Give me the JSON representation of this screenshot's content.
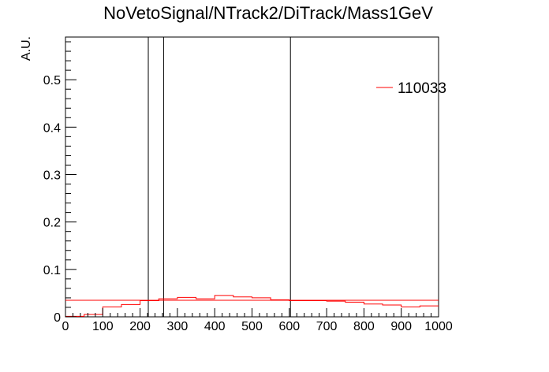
{
  "chart_data": {
    "type": "line",
    "title": "NoVetoSignal/NTrack2/DiTrack/Mass1GeV",
    "xlabel": "",
    "ylabel": "A.U.",
    "xlim": [
      0,
      1000
    ],
    "ylim": [
      0,
      0.59
    ],
    "x_ticks": [
      0,
      100,
      200,
      300,
      400,
      500,
      600,
      700,
      800,
      900,
      1000
    ],
    "y_ticks": [
      0,
      0.1,
      0.2,
      0.3,
      0.4,
      0.5
    ],
    "y_tick_labels": [
      "0",
      "0.1",
      "0.2",
      "0.3",
      "0.4",
      "0.5"
    ],
    "grid": false,
    "legend_position": "top-right",
    "series": [
      {
        "name": "110033",
        "color": "#ff0000",
        "style": "step-histogram",
        "bin_edges": [
          0,
          50,
          100,
          150,
          200,
          250,
          300,
          350,
          400,
          450,
          500,
          550,
          600,
          650,
          700,
          750,
          800,
          850,
          900,
          950,
          1000
        ],
        "values": [
          0.001,
          0.005,
          0.021,
          0.026,
          0.034,
          0.038,
          0.041,
          0.038,
          0.045,
          0.042,
          0.04,
          0.036,
          0.034,
          0.034,
          0.033,
          0.031,
          0.027,
          0.025,
          0.021,
          0.023
        ]
      }
    ],
    "reference_lines": {
      "horizontal_y": 0.035,
      "horizontal_color": "#ff0000",
      "vertical_x": [
        222,
        263,
        603
      ],
      "vertical_color": "#000000"
    }
  }
}
